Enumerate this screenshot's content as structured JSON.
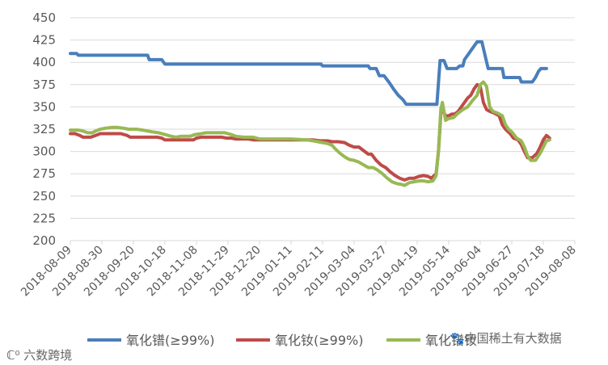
{
  "chart_data": {
    "type": "line",
    "y_ticks": [
      "450",
      "425",
      "400",
      "375",
      "350",
      "325",
      "300",
      "275",
      "250",
      "225",
      "200"
    ],
    "ylim": [
      200,
      450
    ],
    "x_ticks": [
      "2018-08-09",
      "2018-08-30",
      "2018-09-20",
      "2018-10-18",
      "2018-11-08",
      "2018-11-29",
      "2018-12-20",
      "2019-01-11",
      "2019-02-11",
      "2019-03-04",
      "2019-03-27",
      "2019-04-19",
      "2019-05-14",
      "2019-06-04",
      "2019-06-27",
      "2019-07-18",
      "2019-08-08"
    ],
    "grid": "horizontal",
    "legend_position": "bottom",
    "series": [
      {
        "name": "氧化镨(≥99%)",
        "color": "#4a7ebb",
        "points": [
          [
            0,
            410
          ],
          [
            0.4,
            410
          ],
          [
            0.5,
            408
          ],
          [
            4.9,
            408
          ],
          [
            5,
            403
          ],
          [
            5.8,
            403
          ],
          [
            6,
            398
          ],
          [
            15.9,
            398
          ],
          [
            16,
            396
          ],
          [
            18.9,
            396
          ],
          [
            19,
            393
          ],
          [
            19.4,
            393
          ],
          [
            19.6,
            385
          ],
          [
            19.9,
            385
          ],
          [
            20.2,
            378
          ],
          [
            20.5,
            370
          ],
          [
            20.8,
            363
          ],
          [
            21.1,
            358
          ],
          [
            21.3,
            353
          ],
          [
            23.0,
            353
          ],
          [
            23.25,
            353
          ],
          [
            23.45,
            402
          ],
          [
            23.7,
            402
          ],
          [
            23.9,
            393
          ],
          [
            24.5,
            393
          ],
          [
            24.7,
            396
          ],
          [
            24.9,
            396
          ],
          [
            25.0,
            403
          ],
          [
            25.2,
            408
          ],
          [
            25.4,
            413
          ],
          [
            25.6,
            418
          ],
          [
            25.8,
            423
          ],
          [
            26.1,
            423
          ],
          [
            26.3,
            408
          ],
          [
            26.5,
            393
          ],
          [
            27.4,
            393
          ],
          [
            27.5,
            383
          ],
          [
            28.5,
            383
          ],
          [
            28.6,
            378
          ],
          [
            29.3,
            378
          ],
          [
            29.5,
            383
          ],
          [
            29.7,
            390
          ],
          [
            29.85,
            393
          ],
          [
            30.2,
            393
          ]
        ]
      },
      {
        "name": "氧化钕(≥99%)",
        "color": "#be4b48",
        "points": [
          [
            0,
            320
          ],
          [
            0.3,
            320
          ],
          [
            0.6,
            318
          ],
          [
            0.8,
            316
          ],
          [
            1.3,
            316
          ],
          [
            1.6,
            318
          ],
          [
            1.9,
            320
          ],
          [
            3.2,
            320
          ],
          [
            3.6,
            318
          ],
          [
            3.8,
            316
          ],
          [
            5.5,
            316
          ],
          [
            5.8,
            315
          ],
          [
            6.0,
            313
          ],
          [
            7.8,
            313
          ],
          [
            8.0,
            315
          ],
          [
            8.3,
            316
          ],
          [
            9.6,
            316
          ],
          [
            9.9,
            315
          ],
          [
            10.2,
            315
          ],
          [
            10.5,
            314
          ],
          [
            11.3,
            314
          ],
          [
            11.6,
            313
          ],
          [
            14.5,
            313
          ],
          [
            15.4,
            313
          ],
          [
            15.8,
            312
          ],
          [
            16.3,
            312
          ],
          [
            16.6,
            311
          ],
          [
            17.0,
            311
          ],
          [
            17.4,
            310
          ],
          [
            17.7,
            307
          ],
          [
            18.0,
            305
          ],
          [
            18.3,
            305
          ],
          [
            18.6,
            301
          ],
          [
            18.9,
            297
          ],
          [
            19.1,
            297
          ],
          [
            19.4,
            290
          ],
          [
            19.7,
            285
          ],
          [
            20.0,
            282
          ],
          [
            20.3,
            277
          ],
          [
            20.6,
            273
          ],
          [
            20.9,
            270
          ],
          [
            21.2,
            268
          ],
          [
            21.5,
            270
          ],
          [
            21.8,
            270
          ],
          [
            22.1,
            272
          ],
          [
            22.4,
            273
          ],
          [
            22.7,
            272
          ],
          [
            22.9,
            270
          ],
          [
            23.2,
            275
          ],
          [
            23.35,
            300
          ],
          [
            23.5,
            343
          ],
          [
            23.6,
            347
          ],
          [
            23.8,
            340
          ],
          [
            24.0,
            340
          ],
          [
            24.2,
            342
          ],
          [
            24.4,
            342
          ],
          [
            24.6,
            345
          ],
          [
            24.8,
            350
          ],
          [
            25.0,
            355
          ],
          [
            25.2,
            360
          ],
          [
            25.4,
            363
          ],
          [
            25.6,
            370
          ],
          [
            25.8,
            375
          ],
          [
            26.0,
            373
          ],
          [
            26.2,
            355
          ],
          [
            26.4,
            347
          ],
          [
            26.6,
            345
          ],
          [
            26.9,
            343
          ],
          [
            27.2,
            340
          ],
          [
            27.4,
            330
          ],
          [
            27.6,
            325
          ],
          [
            27.9,
            320
          ],
          [
            28.1,
            315
          ],
          [
            28.4,
            313
          ],
          [
            28.6,
            308
          ],
          [
            28.8,
            300
          ],
          [
            29.0,
            293
          ],
          [
            29.3,
            293
          ],
          [
            29.6,
            298
          ],
          [
            29.8,
            305
          ],
          [
            30.0,
            313
          ],
          [
            30.2,
            318
          ],
          [
            30.4,
            315
          ]
        ]
      },
      {
        "name": "氧化镨钕",
        "color": "#98b954",
        "points": [
          [
            0,
            324
          ],
          [
            0.5,
            324
          ],
          [
            0.8,
            323
          ],
          [
            1.1,
            321
          ],
          [
            1.4,
            321
          ],
          [
            1.6,
            323
          ],
          [
            1.9,
            325
          ],
          [
            2.2,
            326
          ],
          [
            2.6,
            327
          ],
          [
            3.0,
            327
          ],
          [
            3.4,
            326
          ],
          [
            3.7,
            325
          ],
          [
            4.2,
            325
          ],
          [
            4.6,
            324
          ],
          [
            5.2,
            322
          ],
          [
            5.6,
            321
          ],
          [
            6.0,
            319
          ],
          [
            6.4,
            317
          ],
          [
            6.7,
            316
          ],
          [
            7.0,
            317
          ],
          [
            7.6,
            317
          ],
          [
            7.9,
            319
          ],
          [
            8.3,
            320
          ],
          [
            8.6,
            321
          ],
          [
            9.8,
            321
          ],
          [
            10.2,
            319
          ],
          [
            10.5,
            317
          ],
          [
            11.0,
            316
          ],
          [
            11.6,
            316
          ],
          [
            12.0,
            314
          ],
          [
            14.0,
            314
          ],
          [
            15.0,
            313
          ],
          [
            15.4,
            312
          ],
          [
            15.7,
            311
          ],
          [
            16.0,
            310
          ],
          [
            16.3,
            309
          ],
          [
            16.6,
            307
          ],
          [
            16.8,
            303
          ],
          [
            17.1,
            298
          ],
          [
            17.4,
            294
          ],
          [
            17.7,
            291
          ],
          [
            18.0,
            290
          ],
          [
            18.3,
            288
          ],
          [
            18.6,
            285
          ],
          [
            18.9,
            282
          ],
          [
            19.2,
            282
          ],
          [
            19.5,
            279
          ],
          [
            19.8,
            275
          ],
          [
            20.1,
            270
          ],
          [
            20.4,
            266
          ],
          [
            20.7,
            264
          ],
          [
            21.0,
            263
          ],
          [
            21.2,
            262
          ],
          [
            21.5,
            265
          ],
          [
            21.8,
            266
          ],
          [
            22.1,
            267
          ],
          [
            22.4,
            267
          ],
          [
            22.7,
            266
          ],
          [
            23.0,
            267
          ],
          [
            23.2,
            273
          ],
          [
            23.35,
            300
          ],
          [
            23.5,
            348
          ],
          [
            23.6,
            355
          ],
          [
            23.8,
            335
          ],
          [
            24.0,
            337
          ],
          [
            24.3,
            338
          ],
          [
            24.6,
            343
          ],
          [
            24.9,
            347
          ],
          [
            25.2,
            350
          ],
          [
            25.5,
            357
          ],
          [
            25.8,
            363
          ],
          [
            26.0,
            375
          ],
          [
            26.2,
            378
          ],
          [
            26.4,
            373
          ],
          [
            26.6,
            350
          ],
          [
            26.8,
            345
          ],
          [
            27.1,
            343
          ],
          [
            27.4,
            340
          ],
          [
            27.6,
            330
          ],
          [
            27.8,
            325
          ],
          [
            28.0,
            322
          ],
          [
            28.3,
            315
          ],
          [
            28.6,
            312
          ],
          [
            28.8,
            305
          ],
          [
            29.0,
            295
          ],
          [
            29.2,
            290
          ],
          [
            29.5,
            290
          ],
          [
            29.8,
            298
          ],
          [
            30.0,
            305
          ],
          [
            30.2,
            312
          ],
          [
            30.4,
            313
          ]
        ]
      }
    ]
  },
  "watermark": {
    "bottom_left": "ℂ⁰ 六数跨境",
    "bottom_right": "🐾中国稀土有大数据"
  }
}
